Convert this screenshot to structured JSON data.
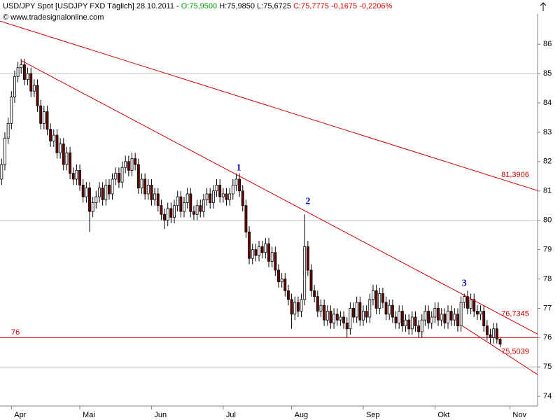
{
  "header": {
    "symbol": "USD/JPY Spot [USDJPY FXD  Täglich] 28.10.2011 -",
    "open": "O:75,9500",
    "high_low": "H:75,9850 L:75,6725",
    "close": "C:75,7775 -0,1675 -0,2206%",
    "source": "© www.tradesignalonline.com",
    "open_color": "#00a000",
    "close_color": "#e00000"
  },
  "chart_data": {
    "type": "candlestick",
    "up_color": "#ffffff",
    "down_color": "#6b0000",
    "wick_color": "#000000",
    "xlim": [
      -0.5,
      164.5
    ],
    "ylim": [
      73.67,
      87.03
    ],
    "xticks": [
      {
        "value": 3,
        "label": "Apr"
      },
      {
        "value": 24,
        "label": "Mai"
      },
      {
        "value": 46,
        "label": "Jun"
      },
      {
        "value": 68,
        "label": "Jul"
      },
      {
        "value": 89,
        "label": "Aug"
      },
      {
        "value": 111,
        "label": "Sep"
      },
      {
        "value": 133,
        "label": "Okt"
      },
      {
        "value": 156,
        "label": "Nov"
      }
    ],
    "yticks": [
      74,
      75,
      76,
      77,
      78,
      79,
      80,
      81,
      82,
      83,
      84,
      85,
      86
    ],
    "grid": [
      75,
      80,
      85
    ],
    "levels": [
      {
        "value": 76,
        "color": "#d00000"
      }
    ],
    "trendlines": [
      {
        "x": [
          -0.5,
          164.5
        ],
        "y": [
          86.79,
          81.01
        ],
        "label": "81,3906",
        "color": "#d00000"
      },
      {
        "x": [
          5.9,
          164.5
        ],
        "y": [
          85.45,
          76.12
        ],
        "label": "76,7345",
        "color": "#d00000"
      },
      {
        "x": [
          141.3,
          164.5
        ],
        "y": [
          76.41,
          74.74
        ],
        "label": "75,5039",
        "color": "#d00000"
      }
    ],
    "markers": [
      {
        "label": "1",
        "x": 72.8,
        "y": 81.78
      },
      {
        "label": "2",
        "x": 94,
        "y": 80.63
      },
      {
        "label": "3",
        "x": 142,
        "y": 77.84
      }
    ],
    "ohlc": [
      [
        81.4,
        82.1,
        81.2,
        81.9
      ],
      [
        81.9,
        83.0,
        81.7,
        82.8
      ],
      [
        82.8,
        83.5,
        82.6,
        83.3
      ],
      [
        83.3,
        84.4,
        83.1,
        84.2
      ],
      [
        84.2,
        85.1,
        84.0,
        84.9
      ],
      [
        84.9,
        85.4,
        84.7,
        85.2
      ],
      [
        85.2,
        85.5,
        85.0,
        85.3
      ],
      [
        85.3,
        85.5,
        84.6,
        84.8
      ],
      [
        84.8,
        85.2,
        84.6,
        85.0
      ],
      [
        85.0,
        85.2,
        84.2,
        84.4
      ],
      [
        84.4,
        84.8,
        84.2,
        84.6
      ],
      [
        84.6,
        84.8,
        83.7,
        83.9
      ],
      [
        83.9,
        84.1,
        83.1,
        83.3
      ],
      [
        83.3,
        83.9,
        83.1,
        83.7
      ],
      [
        83.7,
        83.9,
        82.9,
        83.1
      ],
      [
        83.1,
        83.3,
        82.5,
        82.7
      ],
      [
        82.7,
        83.1,
        82.5,
        82.9
      ],
      [
        82.9,
        83.1,
        82.1,
        82.3
      ],
      [
        82.3,
        82.8,
        82.1,
        82.6
      ],
      [
        82.6,
        82.8,
        81.7,
        81.9
      ],
      [
        81.9,
        82.5,
        81.7,
        82.3
      ],
      [
        82.3,
        82.5,
        81.4,
        81.6
      ],
      [
        81.6,
        81.8,
        81.2,
        81.4
      ],
      [
        81.4,
        81.9,
        81.2,
        81.7
      ],
      [
        81.7,
        81.9,
        81.0,
        81.2
      ],
      [
        81.2,
        81.4,
        80.6,
        80.8
      ],
      [
        80.8,
        81.3,
        80.6,
        81.1
      ],
      [
        81.1,
        81.3,
        79.6,
        80.3
      ],
      [
        80.3,
        80.8,
        80.1,
        80.6
      ],
      [
        80.6,
        81.0,
        80.4,
        80.8
      ],
      [
        80.8,
        81.3,
        80.6,
        81.1
      ],
      [
        81.1,
        81.3,
        80.5,
        80.7
      ],
      [
        80.7,
        81.4,
        80.5,
        81.2
      ],
      [
        81.2,
        81.4,
        80.7,
        80.9
      ],
      [
        80.9,
        81.6,
        80.7,
        81.4
      ],
      [
        81.4,
        81.8,
        81.2,
        81.6
      ],
      [
        81.6,
        81.8,
        81.1,
        81.3
      ],
      [
        81.3,
        82.0,
        81.1,
        81.8
      ],
      [
        81.8,
        82.2,
        81.6,
        82.0
      ],
      [
        82.0,
        82.2,
        81.5,
        81.7
      ],
      [
        81.7,
        82.3,
        81.5,
        82.1
      ],
      [
        82.1,
        82.3,
        81.7,
        81.9
      ],
      [
        81.9,
        82.1,
        80.9,
        81.1
      ],
      [
        81.1,
        81.6,
        80.9,
        81.4
      ],
      [
        81.4,
        81.6,
        80.7,
        80.9
      ],
      [
        80.9,
        81.4,
        80.7,
        81.2
      ],
      [
        81.2,
        81.4,
        80.5,
        80.7
      ],
      [
        80.7,
        81.1,
        80.5,
        80.9
      ],
      [
        80.9,
        81.1,
        80.3,
        80.5
      ],
      [
        80.5,
        80.7,
        80.0,
        80.2
      ],
      [
        80.2,
        80.4,
        79.7,
        80.0
      ],
      [
        80.0,
        80.6,
        79.8,
        80.4
      ],
      [
        80.4,
        80.6,
        79.9,
        80.1
      ],
      [
        80.1,
        80.7,
        79.9,
        80.5
      ],
      [
        80.5,
        81.0,
        80.3,
        80.8
      ],
      [
        80.8,
        81.0,
        80.1,
        80.3
      ],
      [
        80.3,
        80.8,
        80.1,
        80.6
      ],
      [
        80.6,
        81.1,
        80.4,
        80.9
      ],
      [
        80.9,
        81.1,
        80.1,
        80.3
      ],
      [
        80.3,
        80.5,
        80.0,
        80.2
      ],
      [
        80.2,
        80.7,
        80.0,
        80.5
      ],
      [
        80.5,
        80.7,
        80.1,
        80.3
      ],
      [
        80.3,
        80.9,
        80.1,
        80.7
      ],
      [
        80.7,
        81.1,
        80.5,
        80.9
      ],
      [
        80.9,
        81.1,
        80.4,
        80.6
      ],
      [
        80.6,
        81.2,
        80.4,
        81.0
      ],
      [
        81.0,
        81.4,
        80.8,
        81.2
      ],
      [
        81.2,
        81.4,
        80.6,
        80.8
      ],
      [
        80.8,
        81.1,
        80.6,
        80.9
      ],
      [
        80.9,
        81.1,
        80.5,
        80.7
      ],
      [
        80.7,
        81.1,
        80.5,
        80.9
      ],
      [
        80.9,
        81.4,
        80.7,
        81.2
      ],
      [
        81.2,
        81.6,
        81.0,
        81.4
      ],
      [
        81.4,
        81.6,
        80.8,
        81.0
      ],
      [
        81.0,
        81.2,
        80.3,
        80.5
      ],
      [
        80.5,
        80.7,
        79.4,
        79.6
      ],
      [
        79.6,
        79.8,
        78.5,
        78.7
      ],
      [
        78.7,
        79.2,
        78.5,
        79.0
      ],
      [
        79.0,
        79.2,
        78.6,
        78.8
      ],
      [
        78.8,
        79.3,
        78.6,
        79.1
      ],
      [
        79.1,
        79.3,
        78.7,
        78.9
      ],
      [
        78.9,
        79.4,
        78.7,
        79.2
      ],
      [
        79.2,
        79.4,
        78.4,
        78.6
      ],
      [
        78.6,
        79.1,
        78.4,
        78.9
      ],
      [
        78.9,
        79.1,
        78.1,
        78.3
      ],
      [
        78.3,
        78.5,
        77.7,
        77.9
      ],
      [
        77.9,
        78.2,
        77.7,
        78.0
      ],
      [
        78.0,
        78.2,
        77.4,
        77.6
      ],
      [
        77.6,
        77.8,
        77.1,
        77.3
      ],
      [
        77.3,
        77.5,
        76.3,
        76.8
      ],
      [
        76.8,
        77.4,
        76.6,
        77.2
      ],
      [
        77.2,
        77.4,
        76.7,
        76.9
      ],
      [
        76.9,
        77.5,
        76.7,
        77.3
      ],
      [
        77.3,
        80.2,
        77.1,
        79.1
      ],
      [
        79.1,
        79.3,
        78.1,
        78.3
      ],
      [
        78.3,
        78.5,
        77.4,
        77.6
      ],
      [
        77.6,
        77.8,
        77.2,
        77.4
      ],
      [
        77.4,
        77.6,
        76.7,
        76.9
      ],
      [
        76.9,
        77.3,
        76.7,
        77.1
      ],
      [
        77.1,
        77.3,
        76.4,
        76.6
      ],
      [
        76.6,
        77.1,
        76.4,
        76.9
      ],
      [
        76.9,
        77.1,
        76.3,
        76.5
      ],
      [
        76.5,
        77.0,
        76.3,
        76.8
      ],
      [
        76.8,
        77.0,
        76.4,
        76.6
      ],
      [
        76.6,
        76.9,
        76.4,
        76.7
      ],
      [
        76.7,
        76.9,
        76.3,
        76.5
      ],
      [
        76.5,
        76.7,
        76.0,
        76.3
      ],
      [
        76.3,
        77.2,
        76.1,
        77.0
      ],
      [
        77.0,
        77.2,
        76.5,
        76.7
      ],
      [
        76.7,
        77.4,
        76.5,
        77.2
      ],
      [
        77.2,
        77.4,
        76.4,
        76.6
      ],
      [
        76.6,
        77.1,
        76.4,
        76.9
      ],
      [
        76.9,
        77.1,
        76.5,
        76.7
      ],
      [
        76.7,
        77.5,
        76.5,
        77.3
      ],
      [
        77.3,
        77.8,
        77.1,
        77.6
      ],
      [
        77.6,
        77.8,
        76.8,
        77.0
      ],
      [
        77.0,
        77.7,
        76.8,
        77.5
      ],
      [
        77.5,
        77.7,
        77.0,
        77.2
      ],
      [
        77.2,
        77.4,
        76.6,
        76.8
      ],
      [
        76.8,
        77.3,
        76.6,
        77.1
      ],
      [
        77.1,
        77.3,
        76.5,
        76.7
      ],
      [
        76.7,
        76.9,
        76.3,
        76.5
      ],
      [
        76.5,
        77.1,
        76.3,
        76.9
      ],
      [
        76.9,
        77.1,
        76.2,
        76.4
      ],
      [
        76.4,
        76.8,
        76.2,
        76.6
      ],
      [
        76.6,
        76.8,
        76.1,
        76.3
      ],
      [
        76.3,
        76.9,
        76.1,
        76.7
      ],
      [
        76.7,
        76.9,
        76.2,
        76.4
      ],
      [
        76.4,
        76.6,
        76.0,
        76.2
      ],
      [
        76.2,
        76.8,
        76.0,
        76.6
      ],
      [
        76.6,
        77.1,
        76.4,
        76.9
      ],
      [
        76.9,
        77.1,
        76.3,
        76.5
      ],
      [
        76.5,
        76.9,
        76.3,
        76.7
      ],
      [
        76.7,
        77.2,
        76.5,
        77.0
      ],
      [
        77.0,
        77.2,
        76.4,
        76.6
      ],
      [
        76.6,
        77.0,
        76.4,
        76.8
      ],
      [
        76.8,
        77.0,
        76.3,
        76.5
      ],
      [
        76.5,
        77.1,
        76.3,
        76.9
      ],
      [
        76.9,
        77.1,
        76.4,
        76.6
      ],
      [
        76.6,
        77.0,
        76.4,
        76.8
      ],
      [
        76.8,
        77.0,
        76.2,
        76.4
      ],
      [
        76.4,
        77.4,
        76.2,
        77.2
      ],
      [
        77.2,
        77.5,
        77.0,
        77.4
      ],
      [
        77.4,
        77.6,
        76.8,
        77.0
      ],
      [
        77.0,
        77.5,
        76.8,
        77.3
      ],
      [
        77.3,
        77.5,
        76.7,
        76.9
      ],
      [
        76.9,
        77.1,
        76.6,
        76.8
      ],
      [
        76.8,
        77.1,
        76.6,
        76.9
      ],
      [
        76.9,
        77.1,
        76.2,
        76.4
      ],
      [
        76.4,
        76.6,
        75.9,
        76.1
      ],
      [
        76.1,
        76.3,
        75.8,
        76.0
      ],
      [
        76.0,
        76.5,
        75.8,
        76.3
      ],
      [
        76.3,
        76.5,
        75.8,
        75.95
      ],
      [
        75.95,
        75.985,
        75.6725,
        75.7775
      ]
    ]
  }
}
